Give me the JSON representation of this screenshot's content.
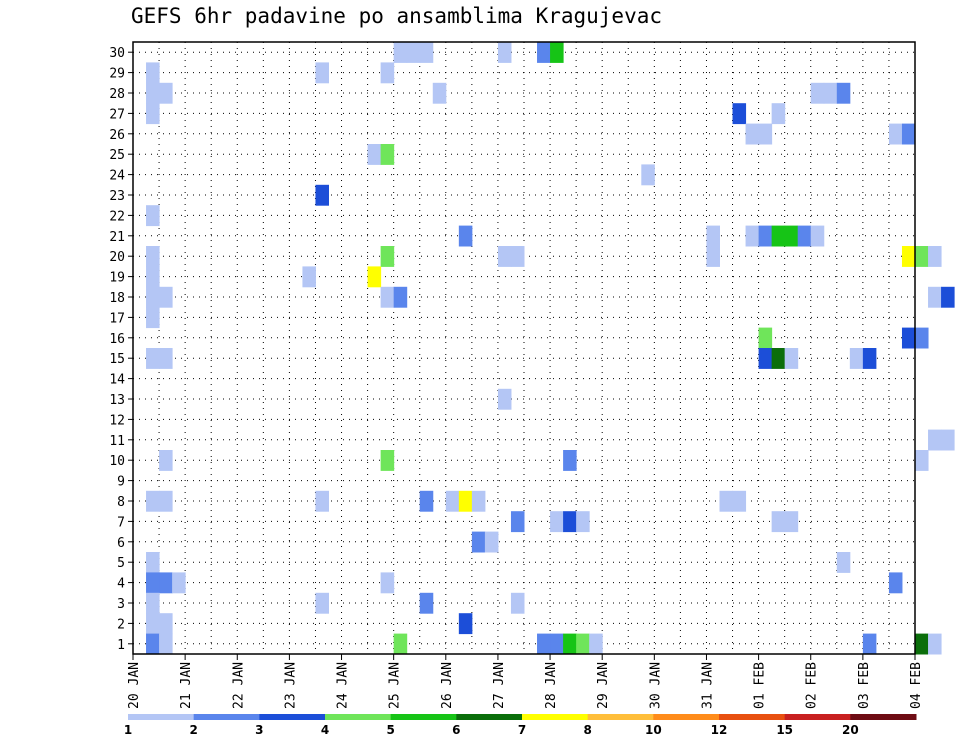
{
  "chart_data": {
    "type": "heatmap",
    "title": "GEFS 6hr padavine po ansamblima Kragujevac",
    "x_tick_labels": [
      "20 JAN",
      "21 JAN",
      "22 JAN",
      "23 JAN",
      "24 JAN",
      "25 JAN",
      "26 JAN",
      "27 JAN",
      "28 JAN",
      "29 JAN",
      "30 JAN",
      "31 JAN",
      "01 FEB",
      "02 FEB",
      "03 FEB",
      "04 FEB"
    ],
    "y_ticks": [
      1,
      2,
      3,
      4,
      5,
      6,
      7,
      8,
      9,
      10,
      11,
      12,
      13,
      14,
      15,
      16,
      17,
      18,
      19,
      20,
      21,
      22,
      23,
      24,
      25,
      26,
      27,
      28,
      29,
      30
    ],
    "xlim_days": [
      0,
      15
    ],
    "ylim": [
      0.5,
      30.5
    ],
    "grid": true,
    "colorbar": {
      "levels": [
        "1",
        "2",
        "3",
        "4",
        "5",
        "6",
        "7",
        "8",
        "10",
        "12",
        "15",
        "20"
      ],
      "colors": [
        "#b4c6f5",
        "#5a85ec",
        "#1c4ed8",
        "#6fe55a",
        "#16c416",
        "#0b6e0b",
        "#ffff00",
        "#ffbe3a",
        "#ff8c1a",
        "#e85010",
        "#c82020",
        "#6e0c14"
      ]
    },
    "cells_note": "each cell: [day_offset_start, ensemble_member, color_class]; color_class indexes colorbar.colors",
    "cells": [
      [
        0.25,
        29,
        0
      ],
      [
        0.25,
        28,
        0
      ],
      [
        0.5,
        28,
        0
      ],
      [
        0.25,
        27,
        0
      ],
      [
        0.25,
        22,
        0
      ],
      [
        0.25,
        20,
        0
      ],
      [
        0.25,
        19,
        0
      ],
      [
        0.25,
        18,
        0
      ],
      [
        0.5,
        18,
        0
      ],
      [
        0.25,
        17,
        0
      ],
      [
        0.25,
        15,
        0
      ],
      [
        0.5,
        15,
        0
      ],
      [
        0.5,
        10,
        0
      ],
      [
        0.25,
        8,
        0
      ],
      [
        0.5,
        8,
        0
      ],
      [
        0.25,
        5,
        0
      ],
      [
        0.25,
        4,
        1
      ],
      [
        0.5,
        4,
        1
      ],
      [
        0.75,
        4,
        0
      ],
      [
        0.25,
        3,
        0
      ],
      [
        0.25,
        2,
        0
      ],
      [
        0.5,
        2,
        0
      ],
      [
        0.25,
        1,
        1
      ],
      [
        0.5,
        1,
        0
      ],
      [
        3.5,
        29,
        0
      ],
      [
        3.5,
        23,
        2
      ],
      [
        3.25,
        19,
        0
      ],
      [
        3.5,
        8,
        0
      ],
      [
        3.5,
        3,
        0
      ],
      [
        4.75,
        29,
        0
      ],
      [
        4.5,
        25,
        0
      ],
      [
        4.75,
        25,
        3
      ],
      [
        4.75,
        20,
        3
      ],
      [
        4.5,
        19,
        6
      ],
      [
        4.75,
        18,
        0
      ],
      [
        5.0,
        18,
        1
      ],
      [
        4.75,
        10,
        3
      ],
      [
        4.75,
        4,
        0
      ],
      [
        5.0,
        1,
        3
      ],
      [
        5.0,
        30,
        0
      ],
      [
        5.25,
        30,
        0
      ],
      [
        5.5,
        30,
        0
      ],
      [
        5.75,
        28,
        0
      ],
      [
        5.5,
        8,
        1
      ],
      [
        5.5,
        3,
        1
      ],
      [
        6.25,
        21,
        1
      ],
      [
        6.0,
        8,
        0
      ],
      [
        6.25,
        8,
        6
      ],
      [
        6.5,
        8,
        0
      ],
      [
        6.5,
        6,
        1
      ],
      [
        6.75,
        6,
        0
      ],
      [
        6.25,
        2,
        2
      ],
      [
        7.0,
        30,
        0
      ],
      [
        7.0,
        20,
        0
      ],
      [
        7.25,
        20,
        0
      ],
      [
        7.0,
        13,
        0
      ],
      [
        7.25,
        7,
        1
      ],
      [
        7.25,
        3,
        0
      ],
      [
        7.75,
        30,
        1
      ],
      [
        8.0,
        30,
        4
      ],
      [
        8.25,
        10,
        1
      ],
      [
        8.0,
        7,
        0
      ],
      [
        8.25,
        7,
        2
      ],
      [
        8.5,
        7,
        0
      ],
      [
        7.75,
        1,
        1
      ],
      [
        8.0,
        1,
        1
      ],
      [
        8.25,
        1,
        4
      ],
      [
        8.5,
        1,
        3
      ],
      [
        8.75,
        1,
        0
      ],
      [
        9.75,
        24,
        0
      ],
      [
        11.0,
        21,
        0
      ],
      [
        11.0,
        20,
        0
      ],
      [
        11.25,
        8,
        0
      ],
      [
        11.5,
        8,
        0
      ],
      [
        11.5,
        27,
        2
      ],
      [
        11.75,
        26,
        0
      ],
      [
        12.0,
        26,
        0
      ],
      [
        12.25,
        27,
        0
      ],
      [
        11.75,
        21,
        0
      ],
      [
        12.0,
        21,
        1
      ],
      [
        12.25,
        21,
        4
      ],
      [
        12.5,
        21,
        4
      ],
      [
        12.75,
        21,
        1
      ],
      [
        13.0,
        21,
        0
      ],
      [
        12.0,
        16,
        3
      ],
      [
        12.0,
        15,
        2
      ],
      [
        12.25,
        15,
        5
      ],
      [
        12.5,
        15,
        0
      ],
      [
        12.25,
        7,
        0
      ],
      [
        12.5,
        7,
        0
      ],
      [
        13.0,
        28,
        0
      ],
      [
        13.25,
        28,
        0
      ],
      [
        13.5,
        28,
        1
      ],
      [
        13.5,
        5,
        0
      ],
      [
        13.75,
        15,
        0
      ],
      [
        14.0,
        15,
        2
      ],
      [
        14.0,
        1,
        1
      ],
      [
        14.5,
        26,
        0
      ],
      [
        14.75,
        26,
        1
      ],
      [
        14.75,
        20,
        6
      ],
      [
        15.0,
        20,
        3
      ],
      [
        15.25,
        20,
        0
      ],
      [
        15.25,
        18,
        0
      ],
      [
        15.5,
        18,
        2
      ],
      [
        14.75,
        16,
        2
      ],
      [
        15.0,
        16,
        1
      ],
      [
        15.25,
        11,
        0
      ],
      [
        15.5,
        11,
        0
      ],
      [
        15.0,
        10,
        0
      ],
      [
        14.5,
        4,
        1
      ],
      [
        15.0,
        1,
        5
      ],
      [
        15.25,
        1,
        0
      ]
    ]
  }
}
